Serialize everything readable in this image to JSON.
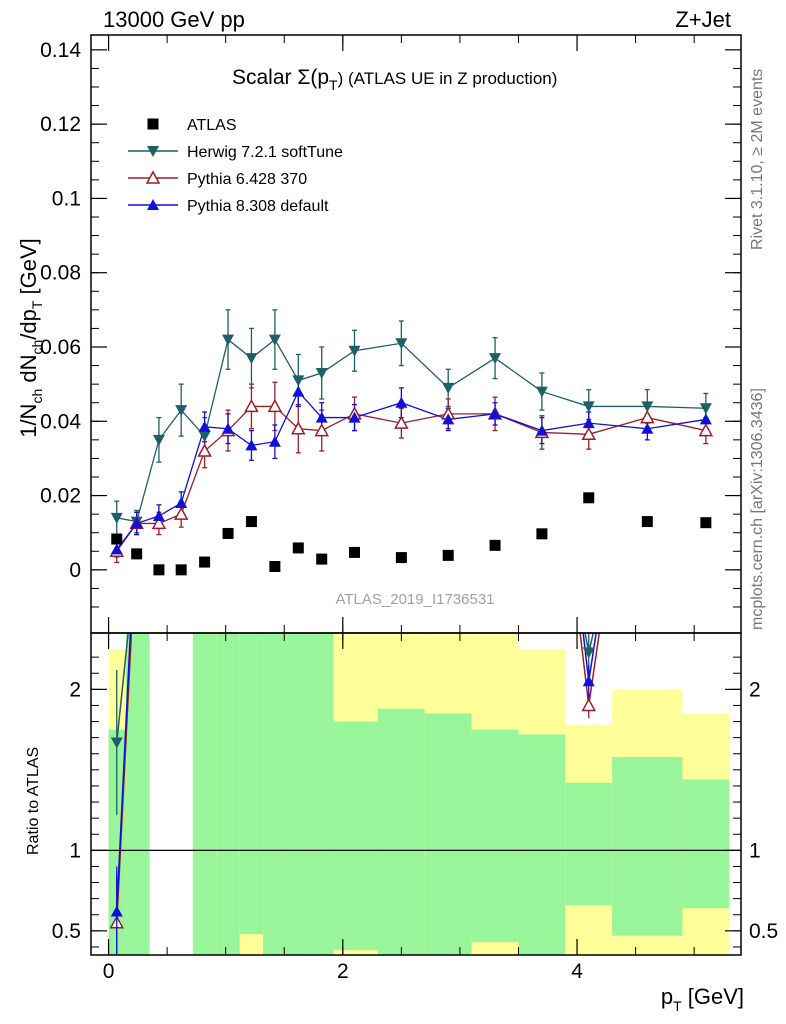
{
  "header": {
    "left": "13000 GeV pp",
    "right": "Z+Jet"
  },
  "plot_title": {
    "main": "Scalar Σ(p",
    "sub": "T",
    "rest": ") (ATLAS UE in Z production)"
  },
  "side_labels": {
    "rivet": "Rivet 3.1.10, ≥ 2M events",
    "mcplots": "mcplots.cern.ch [arXiv:1306.3436]"
  },
  "watermark": "ATLAS_2019_I1736531",
  "axes": {
    "ylabel_main": "1/N_ch dN_ch/dp_T [GeV]",
    "ylabel_ratio": "Ratio to ATLAS",
    "xlabel": "p_T [GeV]"
  },
  "chart_data": {
    "type": "scatter",
    "x": [
      0.07,
      0.24,
      0.43,
      0.62,
      0.82,
      1.02,
      1.22,
      1.42,
      1.62,
      1.82,
      2.1,
      2.5,
      2.9,
      3.3,
      3.7,
      4.1,
      4.6,
      5.1
    ],
    "xlim": [
      -0.15,
      5.4
    ],
    "ylim": [
      -0.017,
      0.144
    ],
    "ratio_ylim": [
      0.35,
      2.35
    ],
    "xticks": [
      0,
      2,
      4
    ],
    "yticks": [
      0,
      0.02,
      0.04,
      0.06,
      0.08,
      0.1,
      0.12,
      0.14
    ],
    "ratio_yticks": [
      0.5,
      1,
      2
    ],
    "series": [
      {
        "name": "ATLAS",
        "color": "#000000",
        "marker": "square",
        "values": [
          0.0083,
          0.0043,
          0.0,
          0.0,
          0.0021,
          0.0098,
          0.013,
          0.0009,
          0.0059,
          0.0029,
          0.0047,
          0.0033,
          0.0039,
          0.0066,
          0.0097,
          0.0194,
          0.013,
          0.0127
        ]
      },
      {
        "name": "Herwig 7.2.1 softTune",
        "color": "#1f5f66",
        "marker": "triangle-down",
        "values": [
          0.014,
          0.013,
          0.035,
          0.043,
          0.036,
          0.062,
          0.057,
          0.062,
          0.051,
          0.053,
          0.059,
          0.061,
          0.049,
          0.057,
          0.048,
          0.044,
          0.044,
          0.0435
        ],
        "errors": [
          0.0045,
          0.003,
          0.006,
          0.007,
          0.005,
          0.008,
          0.008,
          0.008,
          0.007,
          0.007,
          0.0055,
          0.006,
          0.005,
          0.0055,
          0.005,
          0.0045,
          0.0045,
          0.004
        ]
      },
      {
        "name": "Pythia 6.428 370",
        "color": "#9a1e2a",
        "marker": "triangle-up-open",
        "values": [
          0.005,
          0.0125,
          0.0125,
          0.015,
          0.032,
          0.0375,
          0.044,
          0.044,
          0.038,
          0.0375,
          0.042,
          0.0395,
          0.042,
          0.042,
          0.037,
          0.0365,
          0.041,
          0.0375
        ],
        "errors": [
          0.003,
          0.003,
          0.003,
          0.0035,
          0.0045,
          0.0055,
          0.006,
          0.0065,
          0.0065,
          0.0055,
          0.0045,
          0.004,
          0.004,
          0.0045,
          0.0045,
          0.004,
          0.004,
          0.0035
        ]
      },
      {
        "name": "Pythia 8.308 default",
        "color": "#1010d8",
        "marker": "triangle-up",
        "values": [
          0.0055,
          0.0125,
          0.0145,
          0.018,
          0.0385,
          0.038,
          0.0335,
          0.0345,
          0.048,
          0.041,
          0.041,
          0.045,
          0.0405,
          0.042,
          0.0375,
          0.0395,
          0.038,
          0.0405
        ],
        "errors": [
          0.002,
          0.003,
          0.003,
          0.003,
          0.004,
          0.004,
          0.004,
          0.0045,
          0.004,
          0.004,
          0.0035,
          0.004,
          0.003,
          0.003,
          0.0035,
          0.003,
          0.003,
          0.003
        ]
      }
    ],
    "ratio_bands": {
      "edges": [
        0.0,
        0.15,
        0.35,
        0.55,
        0.72,
        0.92,
        1.12,
        1.32,
        1.52,
        1.72,
        1.92,
        2.3,
        2.7,
        3.1,
        3.5,
        3.9,
        4.3,
        4.9,
        5.3
      ],
      "green": [
        [
          0.35,
          1.75
        ],
        [
          0.35,
          2.35
        ],
        null,
        null,
        [
          0.35,
          2.35
        ],
        [
          0.35,
          2.35
        ],
        [
          0.35,
          2.35
        ],
        [
          0.35,
          2.35
        ],
        [
          0.35,
          2.35
        ],
        [
          0.35,
          2.35
        ],
        [
          0.35,
          1.8
        ],
        [
          0.35,
          1.88
        ],
        [
          0.35,
          1.85
        ],
        [
          0.35,
          1.75
        ],
        [
          0.35,
          1.72
        ],
        [
          0.35,
          1.42
        ],
        [
          0.35,
          1.58
        ],
        [
          0.35,
          1.44
        ]
      ],
      "yellow": [
        [
          0.35,
          2.25
        ],
        [
          0.35,
          2.35
        ],
        null,
        null,
        [
          0.35,
          2.35
        ],
        [
          0.35,
          2.35
        ],
        [
          0.35,
          2.35
        ],
        [
          0.35,
          2.35
        ],
        [
          0.35,
          2.35
        ],
        [
          0.35,
          2.35
        ],
        [
          0.35,
          2.35
        ],
        [
          0.35,
          2.35
        ],
        [
          0.35,
          2.35
        ],
        [
          0.35,
          2.35
        ],
        [
          0.35,
          2.25
        ],
        [
          0.35,
          1.78
        ],
        [
          0.35,
          2.0
        ],
        [
          0.35,
          1.85
        ]
      ],
      "yellow_bottom_gap": [
        null,
        null,
        null,
        null,
        [
          0.35,
          0.35
        ],
        [
          0.35,
          0.35
        ],
        [
          0.35,
          0.48
        ],
        [
          0.35,
          0.35
        ],
        [
          0.35,
          0.35
        ],
        [
          0.35,
          0.35
        ],
        [
          0.35,
          0.38
        ],
        [
          0.35,
          0.35
        ],
        [
          0.35,
          0.35
        ],
        [
          0.35,
          0.43
        ],
        [
          0.35,
          0.35
        ],
        [
          0.35,
          0.66
        ],
        [
          0.35,
          0.47
        ],
        [
          0.35,
          0.64
        ]
      ]
    },
    "ratio_points": [
      {
        "series": "Herwig 7.2.1 softTune",
        "x": 0.07,
        "y": 1.67,
        "err": 0.45
      },
      {
        "series": "Herwig 7.2.1 softTune",
        "x": 4.1,
        "y": 2.23,
        "err": 0.12
      },
      {
        "series": "Pythia 6.428 370",
        "x": 0.07,
        "y": 0.55,
        "err": 0.3
      },
      {
        "series": "Pythia 6.428 370",
        "x": 4.1,
        "y": 1.9,
        "err": 0.08
      },
      {
        "series": "Pythia 8.308 default",
        "x": 0.07,
        "y": 0.62,
        "err": 0.28
      },
      {
        "series": "Pythia 8.308 default",
        "x": 4.1,
        "y": 2.05,
        "err": 0.1
      }
    ]
  }
}
